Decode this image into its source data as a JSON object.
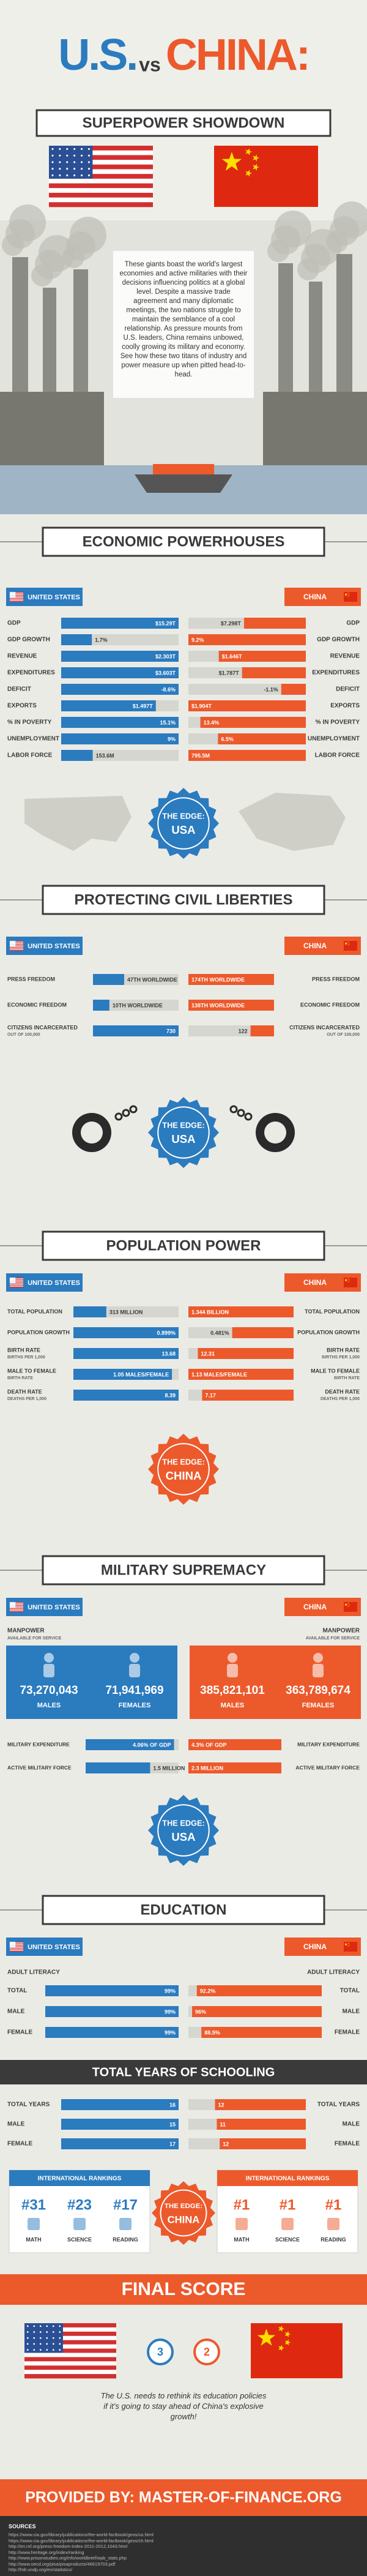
{
  "header": {
    "title_us": "U.S.",
    "title_vs": "vs",
    "title_china": "CHINA:",
    "subtitle": "SUPERPOWER SHOWDOWN",
    "intro": "These giants boast the world's largest economies and active militaries with their decisions influencing politics at a global level. Despite a massive trade agreement and many diplomatic meetings, the two nations struggle to maintain the semblance of a cool relationship. As pressure mounts from U.S. leaders, China remains unbowed, coolly growing its military and economy. See how these two titans of industry and power measure up when pitted head-to-head."
  },
  "sections": [
    {
      "title": "ECONOMIC POWERHOUSES",
      "us_label": "UNITED STATES",
      "china_label": "CHINA",
      "rows": [
        {
          "label": "GDP",
          "us": 15.29,
          "us_label": "$15.29T",
          "china": 7.298,
          "china_label": "$7.298T"
        },
        {
          "label": "GDP GROWTH",
          "us": 1.7,
          "us_label": "1.7%",
          "china": 9.2,
          "china_label": "9.2%"
        },
        {
          "label": "REVENUE",
          "us": 2.303,
          "us_label": "$2.303T",
          "china": 1.646,
          "china_label": "$1.646T"
        },
        {
          "label": "EXPENDITURES",
          "us": 3.603,
          "us_label": "$3.603T",
          "china": 1.787,
          "china_label": "$1.787T"
        },
        {
          "label": "DEFICIT",
          "us": -8.6,
          "us_label": "-8.6%",
          "china": -1.1,
          "china_label": "-1.1%"
        },
        {
          "label": "EXPORTS",
          "us": 1.497,
          "us_label": "$1.497T",
          "china": 1.904,
          "china_label": "$1.904T"
        },
        {
          "label": "% IN POVERTY",
          "us": 15.1,
          "us_label": "15.1%",
          "china": 13.4,
          "china_label": "13.4%"
        },
        {
          "label": "UNEMPLOYMENT",
          "us": 9,
          "us_label": "9%",
          "china": 6.5,
          "china_label": "6.5%"
        },
        {
          "label": "LABOR FORCE",
          "us": 153.6,
          "us_label": "153.6M",
          "china": 795.5,
          "china_label": "795.5M"
        }
      ],
      "edge_label": "THE EDGE:",
      "edge": "USA"
    },
    {
      "title": "PROTECTING CIVIL LIBERTIES",
      "us_label": "UNITED STATES",
      "china_label": "CHINA",
      "rows": [
        {
          "label": "PRESS FREEDOM",
          "us": 47,
          "us_label": "47TH WORLDWIDE",
          "china": 174,
          "china_label": "174TH WORLDWIDE"
        },
        {
          "label": "ECONOMIC FREEDOM",
          "us": 10,
          "us_label": "10TH WORLDWIDE",
          "china": 138,
          "china_label": "138TH WORLDWIDE"
        },
        {
          "label": "CITIZENS INCARCERATED",
          "sub": "OUT OF 100,000",
          "us": 730,
          "china": 122
        }
      ],
      "edge_label": "THE EDGE:",
      "edge": "USA"
    },
    {
      "title": "POPULATION POWER",
      "us_label": "UNITED STATES",
      "china_label": "CHINA",
      "rows": [
        {
          "label": "TOTAL POPULATION",
          "us": 313,
          "us_label": "313 MILLION",
          "china": 1344,
          "china_label": "1.344 BILLION"
        },
        {
          "label": "POPULATION GROWTH",
          "us": 0.899,
          "us_label": "0.899%",
          "china": 0.481,
          "china_label": "0.481%"
        },
        {
          "label": "BIRTH RATE",
          "sub": "BIRTHS PER 1,000",
          "us": 13.68,
          "china": 12.31
        },
        {
          "label": "MALE TO FEMALE",
          "sub": "BIRTH RATE",
          "us": 1.05,
          "us_label": "1.05 MALES/FEMALE",
          "china": 1.13,
          "china_label": "1.13 MALES/FEMALE"
        },
        {
          "label": "DEATH RATE",
          "sub": "DEATHS PER 1,000",
          "us": 8.39,
          "china": 7.17
        }
      ],
      "edge_label": "THE EDGE:",
      "edge": "CHINA"
    },
    {
      "title": "MILITARY SUPREMACY",
      "us_label": "UNITED STATES",
      "china_label": "CHINA",
      "manpower": {
        "label": "MANPOWER",
        "sub": "AVAILABLE FOR SERVICE",
        "males": "MALES",
        "females": "FEMALES",
        "us_males": 73270043,
        "us_males_label": "73,270,043",
        "us_females": 71941969,
        "us_females_label": "71,941,969",
        "china_males": 385821101,
        "china_males_label": "385,821,101",
        "china_females": 363789674,
        "china_females_label": "363,789,674"
      },
      "rows": [
        {
          "label": "MILITARY EXPENDITURE",
          "us": 4.06,
          "us_label": "4.06% OF GDP",
          "china": 4.3,
          "china_label": "4.3% OF GDP"
        },
        {
          "label": "ACTIVE MILITARY FORCE",
          "us": 1.5,
          "us_label": "1.5 MILLION",
          "china": 2.3,
          "china_label": "2.3 MILLION"
        }
      ],
      "edge_label": "THE EDGE:",
      "edge": "USA"
    },
    {
      "title": "EDUCATION",
      "us_label": "UNITED STATES",
      "china_label": "CHINA",
      "subheading": "ADULT LITERACY",
      "rows": [
        {
          "label": "TOTAL",
          "us": 99,
          "us_label": "99%",
          "china": 92.2,
          "china_label": "92.2%"
        },
        {
          "label": "MALE",
          "us": 99,
          "us_label": "99%",
          "china": 96,
          "china_label": "96%"
        },
        {
          "label": "FEMALE",
          "us": 99,
          "us_label": "99%",
          "china": 88.5,
          "china_label": "88.5%"
        }
      ],
      "schooling": {
        "title": "TOTAL YEARS OF SCHOOLING",
        "rows": [
          {
            "label": "TOTAL YEARS",
            "us": 16,
            "china": 12
          },
          {
            "label": "MALE",
            "us": 15,
            "china": 11
          },
          {
            "label": "FEMALE",
            "us": 17,
            "china": 12
          }
        ]
      },
      "rankings": {
        "title": "INTERNATIONAL RANKINGS",
        "subjects": [
          "MATH",
          "SCIENCE",
          "READING"
        ],
        "us": [
          31,
          23,
          17
        ],
        "us_labels": [
          "#31",
          "#23",
          "#17"
        ],
        "china": [
          1,
          1,
          1
        ],
        "china_labels": [
          "#1",
          "#1",
          "#1"
        ]
      },
      "edge_label": "THE EDGE:",
      "edge": "CHINA"
    }
  ],
  "final": {
    "title": "FINAL SCORE",
    "us_score": 3,
    "china_score": 2,
    "text": "The U.S. needs to rethink its education policies if it's going to stay ahead of China's explosive growth!",
    "provided_by": "PROVIDED BY: MASTER-OF-FINANCE.ORG",
    "sources_title": "SOURCES",
    "sources": [
      "https://www.cia.gov/library/publications/the-world-factbook/geos/us.html",
      "https://www.cia.gov/library/publications/the-world-factbook/geos/ch.html",
      "http://en.rsf.org/press-freedom-index-2011-2012,1043.html",
      "http://www.heritage.org/index/ranking",
      "http://www.prisonstudies.org/info/worldbrief/wpb_stats.php",
      "http://www.oecd.org/pisa/pisaproducts/46619703.pdf",
      "http://hdr.undp.org/en/statistics/"
    ]
  }
}
